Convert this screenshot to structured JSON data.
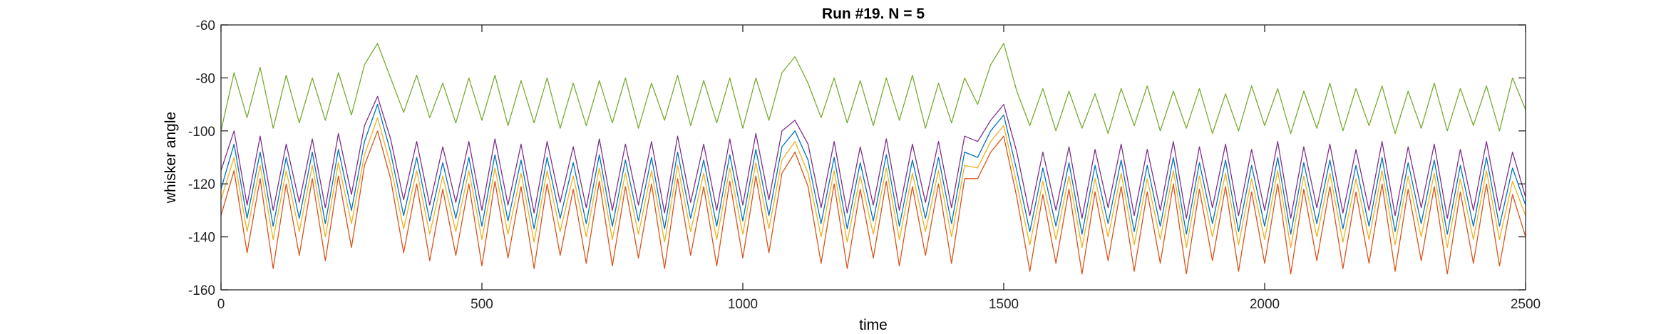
{
  "chart_data": {
    "type": "line",
    "title": "Run #19. N = 5",
    "xlabel": "time",
    "ylabel": "whisker angle",
    "xlim": [
      0,
      2500
    ],
    "ylim": [
      -160,
      -60
    ],
    "xticks": [
      0,
      500,
      1000,
      1500,
      2000,
      2500
    ],
    "yticks": [
      -60,
      -80,
      -100,
      -120,
      -140,
      -160
    ],
    "grid": false,
    "legend": "none",
    "x": [
      0,
      25,
      50,
      75,
      100,
      125,
      150,
      175,
      200,
      225,
      250,
      275,
      300,
      325,
      350,
      375,
      400,
      425,
      450,
      475,
      500,
      525,
      550,
      575,
      600,
      625,
      650,
      675,
      700,
      725,
      750,
      775,
      800,
      825,
      850,
      875,
      900,
      925,
      950,
      975,
      1000,
      1025,
      1050,
      1075,
      1100,
      1125,
      1150,
      1175,
      1200,
      1225,
      1250,
      1275,
      1300,
      1325,
      1350,
      1375,
      1400,
      1425,
      1450,
      1475,
      1500,
      1525,
      1550,
      1575,
      1600,
      1625,
      1650,
      1675,
      1700,
      1725,
      1750,
      1775,
      1800,
      1825,
      1850,
      1875,
      1900,
      1925,
      1950,
      1975,
      2000,
      2025,
      2050,
      2075,
      2100,
      2125,
      2150,
      2175,
      2200,
      2225,
      2250,
      2275,
      2300,
      2325,
      2350,
      2375,
      2400,
      2425,
      2450,
      2475,
      2500
    ],
    "series": [
      {
        "color": "#77ac30",
        "values": [
          -100,
          -78,
          -95,
          -76,
          -99,
          -79,
          -97,
          -80,
          -96,
          -78,
          -94,
          -75,
          -67,
          -80,
          -93,
          -79,
          -95,
          -82,
          -97,
          -80,
          -96,
          -79,
          -98,
          -81,
          -97,
          -80,
          -99,
          -82,
          -98,
          -81,
          -97,
          -80,
          -99,
          -82,
          -96,
          -79,
          -98,
          -81,
          -97,
          -80,
          -99,
          -80,
          -96,
          -78,
          -72,
          -82,
          -95,
          -80,
          -97,
          -81,
          -98,
          -80,
          -96,
          -79,
          -99,
          -82,
          -97,
          -80,
          -90,
          -75,
          -67,
          -85,
          -98,
          -84,
          -100,
          -85,
          -99,
          -86,
          -101,
          -84,
          -98,
          -83,
          -100,
          -85,
          -99,
          -84,
          -101,
          -86,
          -100,
          -83,
          -98,
          -84,
          -101,
          -85,
          -99,
          -82,
          -100,
          -84,
          -98,
          -83,
          -101,
          -85,
          -99,
          -82,
          -100,
          -84,
          -98,
          -83,
          -100,
          -80,
          -92
        ]
      },
      {
        "color": "#7e2f8e",
        "values": [
          -115,
          -100,
          -128,
          -102,
          -130,
          -105,
          -127,
          -103,
          -129,
          -101,
          -124,
          -98,
          -87,
          -103,
          -126,
          -104,
          -128,
          -106,
          -127,
          -104,
          -130,
          -103,
          -128,
          -105,
          -131,
          -104,
          -127,
          -106,
          -129,
          -103,
          -130,
          -105,
          -128,
          -104,
          -131,
          -102,
          -127,
          -105,
          -130,
          -103,
          -128,
          -101,
          -126,
          -100,
          -96,
          -105,
          -129,
          -104,
          -131,
          -106,
          -128,
          -103,
          -130,
          -105,
          -127,
          -104,
          -129,
          -102,
          -104,
          -96,
          -90,
          -108,
          -132,
          -108,
          -130,
          -106,
          -133,
          -107,
          -129,
          -105,
          -132,
          -107,
          -130,
          -104,
          -133,
          -106,
          -129,
          -105,
          -132,
          -107,
          -130,
          -104,
          -133,
          -106,
          -129,
          -105,
          -131,
          -107,
          -130,
          -104,
          -132,
          -106,
          -129,
          -105,
          -133,
          -107,
          -130,
          -104,
          -130,
          -108,
          -125
        ]
      },
      {
        "color": "#0072bd",
        "values": [
          -122,
          -105,
          -133,
          -108,
          -136,
          -110,
          -133,
          -108,
          -135,
          -107,
          -130,
          -104,
          -90,
          -108,
          -132,
          -110,
          -134,
          -112,
          -133,
          -110,
          -136,
          -109,
          -134,
          -111,
          -137,
          -110,
          -133,
          -112,
          -135,
          -109,
          -136,
          -111,
          -134,
          -110,
          -137,
          -108,
          -133,
          -111,
          -136,
          -109,
          -134,
          -107,
          -132,
          -106,
          -100,
          -111,
          -135,
          -110,
          -137,
          -112,
          -134,
          -109,
          -136,
          -111,
          -133,
          -110,
          -135,
          -108,
          -110,
          -100,
          -94,
          -115,
          -138,
          -114,
          -136,
          -112,
          -139,
          -113,
          -135,
          -111,
          -138,
          -113,
          -136,
          -110,
          -139,
          -112,
          -135,
          -111,
          -138,
          -113,
          -136,
          -110,
          -139,
          -112,
          -135,
          -111,
          -137,
          -113,
          -136,
          -110,
          -138,
          -112,
          -135,
          -111,
          -139,
          -113,
          -136,
          -110,
          -136,
          -114,
          -128
        ]
      },
      {
        "color": "#edb120",
        "values": [
          -126,
          -110,
          -138,
          -113,
          -141,
          -115,
          -138,
          -113,
          -140,
          -112,
          -135,
          -109,
          -95,
          -113,
          -137,
          -115,
          -139,
          -117,
          -138,
          -115,
          -141,
          -114,
          -139,
          -116,
          -142,
          -115,
          -138,
          -117,
          -140,
          -114,
          -141,
          -116,
          -139,
          -115,
          -142,
          -113,
          -138,
          -116,
          -141,
          -114,
          -139,
          -112,
          -137,
          -111,
          -104,
          -116,
          -140,
          -115,
          -142,
          -117,
          -139,
          -114,
          -141,
          -116,
          -138,
          -115,
          -140,
          -113,
          -114,
          -104,
          -98,
          -120,
          -143,
          -119,
          -141,
          -117,
          -144,
          -118,
          -140,
          -116,
          -143,
          -118,
          -141,
          -115,
          -144,
          -117,
          -140,
          -116,
          -143,
          -118,
          -141,
          -115,
          -144,
          -117,
          -140,
          -116,
          -142,
          -118,
          -141,
          -115,
          -143,
          -117,
          -140,
          -116,
          -144,
          -118,
          -141,
          -115,
          -141,
          -119,
          -132
        ]
      },
      {
        "color": "#d95319",
        "values": [
          -132,
          -115,
          -146,
          -118,
          -152,
          -120,
          -147,
          -118,
          -149,
          -117,
          -144,
          -113,
          -100,
          -118,
          -146,
          -120,
          -149,
          -122,
          -147,
          -120,
          -151,
          -119,
          -148,
          -121,
          -152,
          -120,
          -147,
          -122,
          -150,
          -119,
          -151,
          -121,
          -148,
          -120,
          -152,
          -118,
          -147,
          -121,
          -151,
          -119,
          -148,
          -117,
          -146,
          -116,
          -108,
          -121,
          -150,
          -120,
          -152,
          -122,
          -148,
          -119,
          -151,
          -121,
          -147,
          -120,
          -150,
          -118,
          -118,
          -108,
          -102,
          -125,
          -153,
          -124,
          -150,
          -122,
          -154,
          -123,
          -149,
          -121,
          -153,
          -123,
          -150,
          -120,
          -154,
          -122,
          -149,
          -121,
          -153,
          -123,
          -150,
          -120,
          -154,
          -122,
          -149,
          -121,
          -152,
          -123,
          -150,
          -120,
          -153,
          -122,
          -149,
          -121,
          -154,
          -123,
          -150,
          -120,
          -151,
          -124,
          -140
        ]
      }
    ]
  }
}
